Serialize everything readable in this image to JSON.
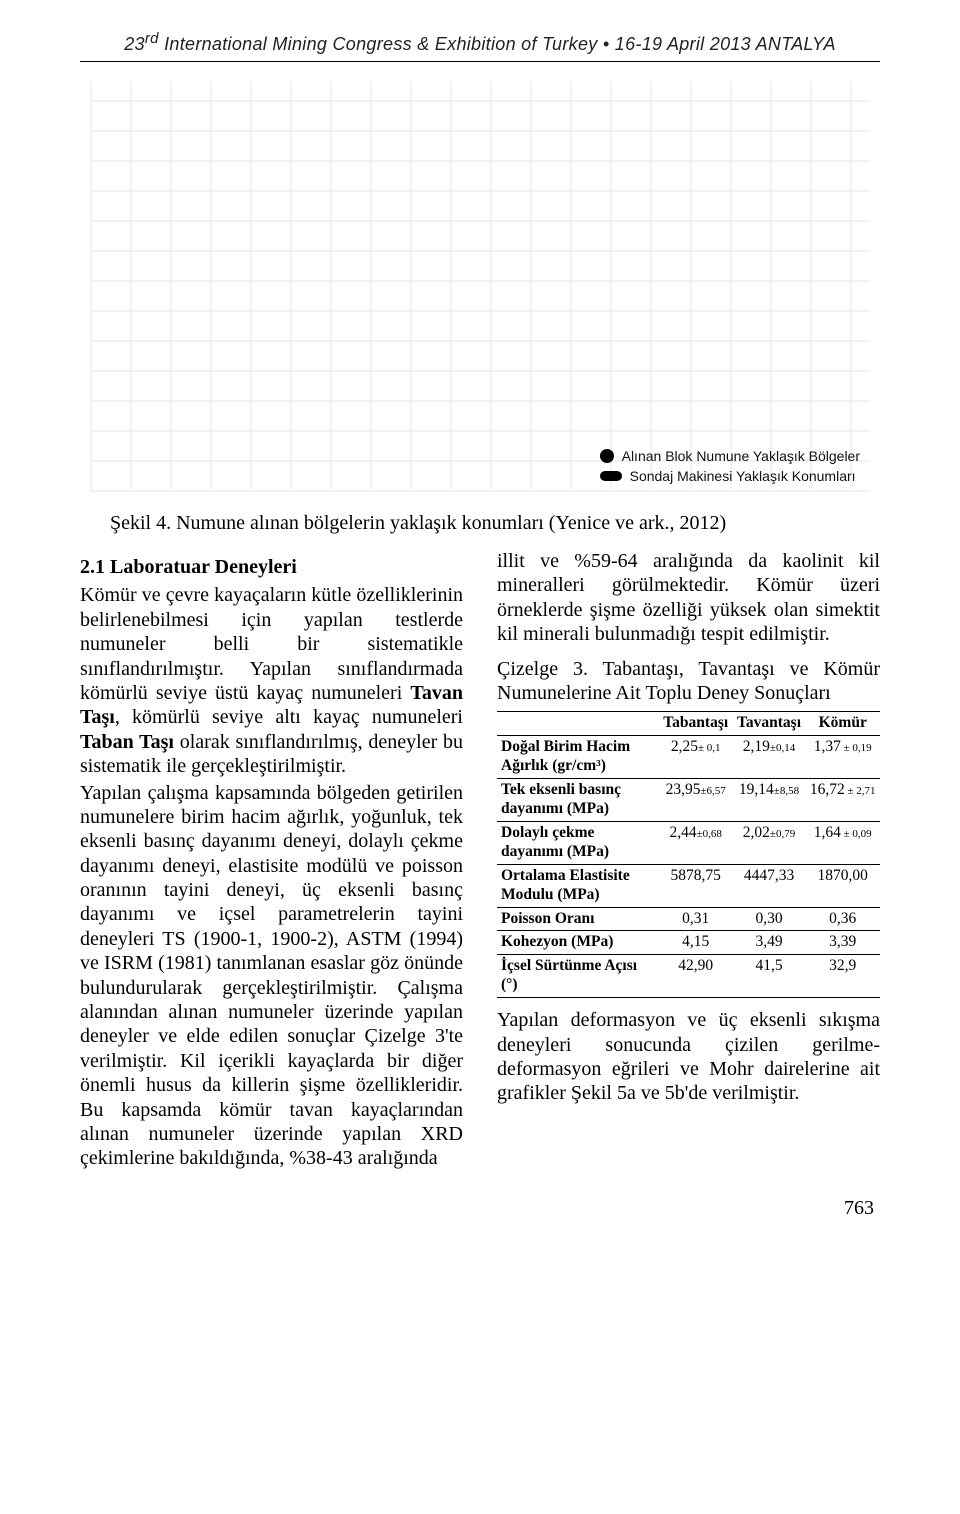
{
  "header": {
    "text": "23rd International Mining Congress & Exhibition of Turkey • 16-19 April 2013 ANTALYA"
  },
  "figure": {
    "legend1": "Alınan Blok Numune Yaklaşık Bölgeler",
    "legend2": "Sondaj Makinesi Yaklaşık Konumları",
    "caption": "Şekil 4. Numune alınan bölgelerin yaklaşık konumları (Yenice ve ark., 2012)"
  },
  "left": {
    "section_title": "2.1 Laboratuar Deneyleri",
    "p1a": "Kömür ve çevre kayaçaların kütle özelliklerinin belirlenebilmesi için yapılan testlerde numuneler belli bir sistematikle sınıflandırılmıştır. Yapılan sınıflandırmada kömürlü seviye üstü kayaç numuneleri ",
    "p1b": "Tavan Taşı",
    "p1c": ", kömürlü seviye altı kayaç numuneleri ",
    "p1d": "Taban Taşı",
    "p1e": " olarak sınıflandırılmış, deneyler bu sistematik ile gerçekleştirilmiştir.",
    "p2": "Yapılan çalışma kapsamında bölgeden getirilen numunelere birim hacim ağırlık, yoğunluk, tek eksenli basınç dayanımı deneyi, dolaylı çekme dayanımı deneyi, elastisite modülü ve poisson oranının tayini deneyi, üç eksenli basınç dayanımı ve içsel parametrelerin tayini deneyleri TS (1900-1, 1900-2), ASTM (1994) ve ISRM (1981) tanımlanan esaslar göz önünde bulundurularak gerçekleştirilmiştir. Çalışma alanından alınan numuneler üzerinde yapılan deneyler ve elde edilen sonuçlar Çizelge 3'te verilmiştir. Kil içerikli kayaçlarda bir diğer önemli husus da killerin şişme özellikleridir. Bu kapsamda kömür tavan kayaçlarından alınan numuneler üzerinde yapılan XRD çekimlerine bakıldığında, %38-43 aralığında"
  },
  "right": {
    "p1": "illit ve %59-64 aralığında da kaolinit kil mineralleri görülmektedir. Kömür üzeri örneklerde şişme özelliği yüksek olan simektit kil minerali bulunmadığı tespit edilmiştir.",
    "table_title": "Çizelge 3. Tabantaşı, Tavantaşı ve Kömür Numunelerine Ait Toplu Deney Sonuçları",
    "p2": "Yapılan deformasyon ve üç eksenli sıkışma deneyleri sonucunda çizilen gerilme-deformasyon eğrileri ve Mohr dairelerine ait grafikler Şekil 5a ve 5b'de verilmiştir."
  },
  "table": {
    "headers": [
      "",
      "Tabantaşı",
      "Tavantaşı",
      "Kömür"
    ],
    "rows": [
      {
        "label": "Doğal Birim Hacim Ağırlık (gr/cm³)",
        "c1": "2,25",
        "e1": "± 0,1",
        "c2": "2,19",
        "e2": "±0,14",
        "c3": "1,37",
        "e3": " ± 0,19"
      },
      {
        "label": "Tek eksenli basınç dayanımı (MPa)",
        "c1": "23,95",
        "e1": "±6,57",
        "c2": "19,14",
        "e2": "±8,58",
        "c3": "16,72",
        "e3": " ± 2,71"
      },
      {
        "label": "Dolaylı çekme dayanımı (MPa)",
        "c1": "2,44",
        "e1": "±0,68",
        "c2": "2,02",
        "e2": "±0,79",
        "c3": "1,64",
        "e3": " ± 0,09"
      },
      {
        "label": "Ortalama Elastisite Modulu (MPa)",
        "c1": "5878,75",
        "e1": "",
        "c2": "4447,33",
        "e2": "",
        "c3": "1870,00",
        "e3": ""
      },
      {
        "label": "Poisson Oranı",
        "c1": "0,31",
        "e1": "",
        "c2": "0,30",
        "e2": "",
        "c3": "0,36",
        "e3": ""
      },
      {
        "label": "Kohezyon (MPa)",
        "c1": "4,15",
        "e1": "",
        "c2": "3,49",
        "e2": "",
        "c3": "3,39",
        "e3": ""
      },
      {
        "label": "İçsel Sürtünme Açısı (°)",
        "c1": "42,90",
        "e1": "",
        "c2": "41,5",
        "e2": "",
        "c3": "32,9",
        "e3": ""
      }
    ]
  },
  "page_number": "763",
  "colors": {
    "text": "#000000",
    "bg": "#ffffff",
    "rule": "#000000",
    "grid": "#f2f2f2"
  }
}
